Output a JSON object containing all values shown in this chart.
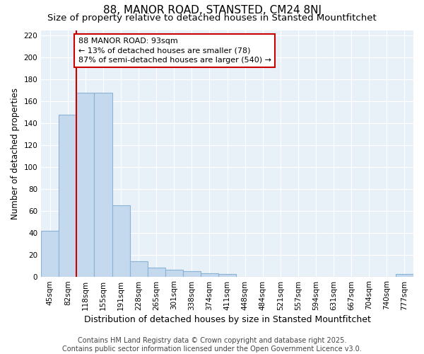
{
  "title": "88, MANOR ROAD, STANSTED, CM24 8NJ",
  "subtitle": "Size of property relative to detached houses in Stansted Mountfitchet",
  "xlabel": "Distribution of detached houses by size in Stansted Mountfitchet",
  "ylabel": "Number of detached properties",
  "categories": [
    "45sqm",
    "82sqm",
    "118sqm",
    "155sqm",
    "191sqm",
    "228sqm",
    "265sqm",
    "301sqm",
    "338sqm",
    "374sqm",
    "411sqm",
    "448sqm",
    "484sqm",
    "521sqm",
    "557sqm",
    "594sqm",
    "631sqm",
    "667sqm",
    "704sqm",
    "740sqm",
    "777sqm"
  ],
  "values": [
    42,
    148,
    168,
    168,
    65,
    14,
    8,
    6,
    5,
    3,
    2,
    0,
    0,
    0,
    0,
    0,
    0,
    0,
    0,
    0,
    2
  ],
  "bar_color": "#c5d9ee",
  "bar_edge_color": "#8ab4d4",
  "vline_x": 1.5,
  "vline_color": "#cc0000",
  "annotation_text": "88 MANOR ROAD: 93sqm\n← 13% of detached houses are smaller (78)\n87% of semi-detached houses are larger (540) →",
  "annotation_box_color": "#ffffff",
  "annotation_box_edge": "#cc0000",
  "ylim": [
    0,
    225
  ],
  "yticks": [
    0,
    20,
    40,
    60,
    80,
    100,
    120,
    140,
    160,
    180,
    200,
    220
  ],
  "plot_bg_color": "#e8f0f8",
  "fig_bg_color": "#ffffff",
  "footer": "Contains HM Land Registry data © Crown copyright and database right 2025.\nContains public sector information licensed under the Open Government Licence v3.0.",
  "title_fontsize": 11,
  "subtitle_fontsize": 9.5,
  "xlabel_fontsize": 9,
  "ylabel_fontsize": 8.5,
  "tick_fontsize": 7.5,
  "footer_fontsize": 7,
  "annot_fontsize": 8
}
